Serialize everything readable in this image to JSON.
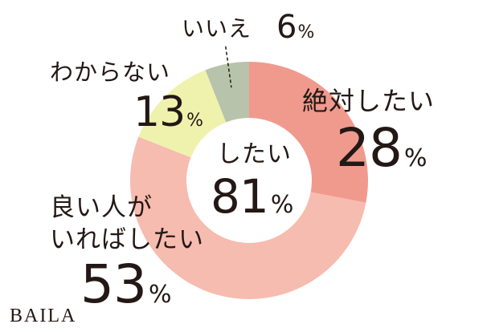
{
  "chart_data": {
    "type": "donut",
    "slices": [
      {
        "label": "絶対したい",
        "value": 28,
        "color": "#f09a8d"
      },
      {
        "label": "良い人がいればしたい",
        "value": 53,
        "color": "#f6bcaf"
      },
      {
        "label": "わからない",
        "value": 13,
        "color": "#eff2ad"
      },
      {
        "label": "いいえ",
        "value": 6,
        "color": "#b8c3ab"
      }
    ],
    "center": {
      "label": "したい",
      "value": "81",
      "unit": "%"
    },
    "unit": "%"
  },
  "labels": {
    "zettai": {
      "line1": "絶対したい",
      "value": "28",
      "unit": "%"
    },
    "yoihito": {
      "line1": "良い人が",
      "line2": "いればしたい",
      "value": "53",
      "unit": "%"
    },
    "wakaranai": {
      "line1": "わからない",
      "value": "13",
      "unit": "%"
    },
    "iie": {
      "line1": "いいえ",
      "value": "6",
      "unit": "%"
    }
  },
  "logo": "BAILA"
}
